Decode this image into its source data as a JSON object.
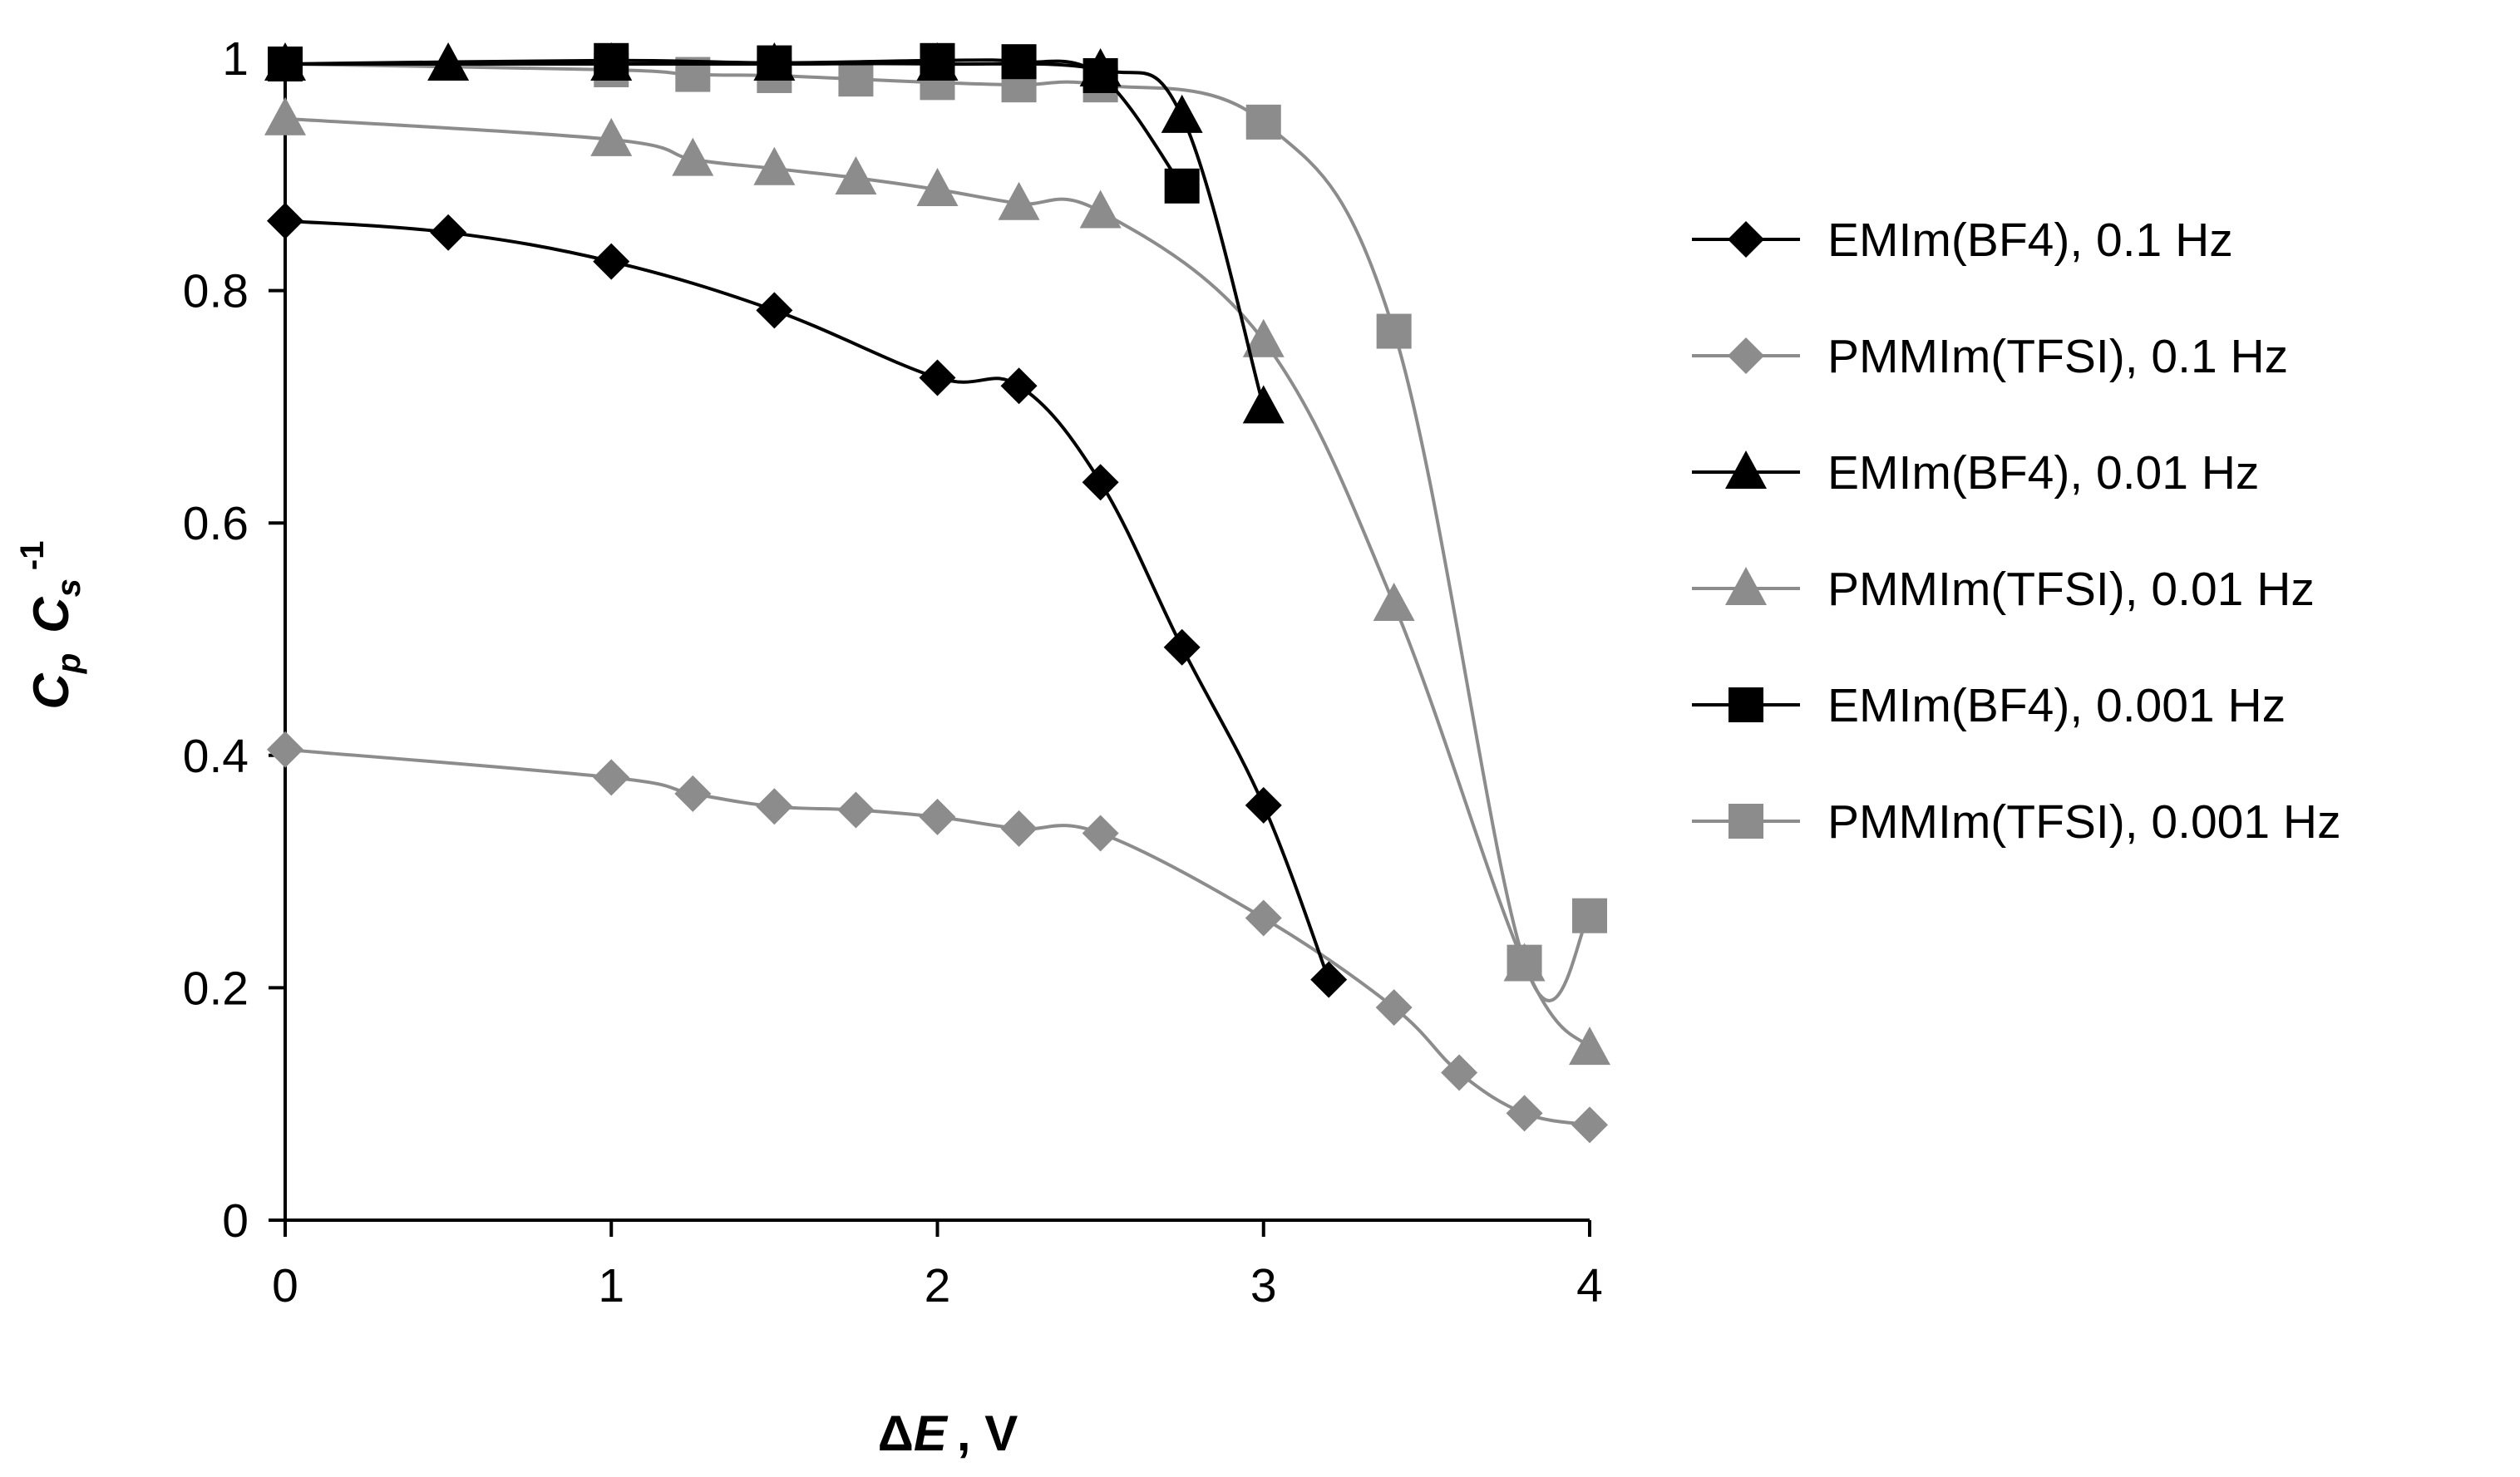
{
  "colors": {
    "black_series": "#000000",
    "gray_series": "#8c8c8c",
    "axis": "#000000",
    "background": "#ffffff"
  },
  "chart_data": {
    "type": "line",
    "title": "",
    "xlabel": "ΔE , V",
    "ylabel": "Cp Cs-1",
    "xlabel_parts": {
      "symbol": "Δ",
      "variable": "E",
      "unit": ", V"
    },
    "ylabel_parts": {
      "c1": "C",
      "sub1": "p",
      "c2": "C",
      "sub2": "s",
      "exp": "-1"
    },
    "xlim": [
      0,
      4
    ],
    "ylim": [
      0,
      1
    ],
    "x_ticks": [
      0,
      1,
      2,
      3,
      4
    ],
    "y_ticks": [
      0,
      0.2,
      0.4,
      0.6,
      0.8,
      1
    ],
    "x_tick_labels": [
      "0",
      "1",
      "2",
      "3",
      "4"
    ],
    "y_tick_labels": [
      "0",
      "0.2",
      "0.4",
      "0.6",
      "0.8",
      "1"
    ],
    "grid": false,
    "legend_position": "right",
    "series": [
      {
        "name": "EMIm(BF4), 0.1 Hz",
        "color": "#000000",
        "marker": "diamond",
        "x": [
          0,
          0.5,
          1,
          1.5,
          2,
          2.25,
          2.5,
          2.75,
          3,
          3.2
        ],
        "y": [
          0.86,
          0.85,
          0.825,
          0.783,
          0.725,
          0.718,
          0.635,
          0.493,
          0.357,
          0.207
        ]
      },
      {
        "name": "PMMIm(TFSI), 0.1 Hz",
        "color": "#8c8c8c",
        "marker": "diamond",
        "x": [
          0,
          1,
          1.25,
          1.5,
          1.75,
          2,
          2.25,
          2.5,
          3,
          3.4,
          3.6,
          3.8,
          4
        ],
        "y": [
          0.405,
          0.381,
          0.367,
          0.356,
          0.353,
          0.347,
          0.337,
          0.333,
          0.26,
          0.183,
          0.127,
          0.092,
          0.082
        ]
      },
      {
        "name": "EMIm(BF4), 0.01 Hz",
        "color": "#000000",
        "marker": "triangle",
        "x": [
          0,
          0.5,
          1,
          1.5,
          2,
          2.5,
          2.75,
          3
        ],
        "y": [
          0.995,
          0.995,
          0.995,
          0.995,
          0.995,
          0.99,
          0.95,
          0.7
        ]
      },
      {
        "name": "PMMIm(TFSI), 0.01 Hz",
        "color": "#8c8c8c",
        "marker": "triangle",
        "x": [
          0,
          1,
          1.25,
          1.5,
          1.75,
          2,
          2.25,
          2.5,
          3,
          3.4,
          3.8,
          4
        ],
        "y": [
          0.948,
          0.93,
          0.913,
          0.905,
          0.897,
          0.887,
          0.875,
          0.868,
          0.757,
          0.53,
          0.22,
          0.148
        ]
      },
      {
        "name": "EMIm(BF4), 0.001 Hz",
        "color": "#000000",
        "marker": "square",
        "x": [
          0,
          1,
          1.5,
          2,
          2.25,
          2.5,
          2.75
        ],
        "y": [
          0.995,
          0.998,
          0.996,
          0.998,
          0.997,
          0.985,
          0.89
        ]
      },
      {
        "name": "PMMIm(TFSI), 0.001 Hz",
        "color": "#8c8c8c",
        "marker": "square",
        "x": [
          0,
          1,
          1.25,
          1.5,
          1.75,
          2,
          2.25,
          2.5,
          3,
          3.4,
          3.8,
          4
        ],
        "y": [
          0.995,
          0.99,
          0.986,
          0.985,
          0.982,
          0.979,
          0.977,
          0.977,
          0.945,
          0.765,
          0.222,
          0.262
        ]
      }
    ]
  }
}
